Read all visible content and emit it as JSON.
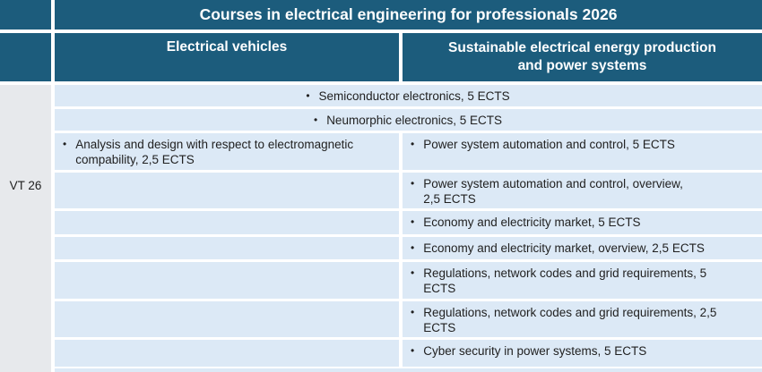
{
  "title": "Courses in electrical engineering for professionals 2026",
  "semester": {
    "label": "VT 26"
  },
  "columns": {
    "left": {
      "label": "Electrical vehicles"
    },
    "right": {
      "label": "Sustainable electrical energy production\nand power systems"
    }
  },
  "glyphs": {
    "bullet": "•"
  },
  "full_span_courses": [
    {
      "text": "Semiconductor electronics, 5 ECTS"
    },
    {
      "text": "Neumorphic electronics, 5 ECTS"
    }
  ],
  "rows": [
    {
      "left": "Analysis and design with respect to electromagnetic\ncompability, 2,5 ECTS",
      "right": "Power system automation and control, 5 ECTS"
    },
    {
      "left": "",
      "right": "Power system automation and control, overview,\n2,5 ECTS"
    },
    {
      "left": "",
      "right": "Economy and electricity market, 5 ECTS"
    },
    {
      "left": "",
      "right": "Economy and electricity market, overview, 2,5 ECTS"
    },
    {
      "left": "",
      "right": "Regulations, network codes and grid requirements, 5\nECTS"
    },
    {
      "left": "",
      "right": "Regulations, network codes and grid requirements, 2,5\nECTS"
    },
    {
      "left": "",
      "right": "Cyber security in power systems, 5 ECTS"
    }
  ],
  "colors": {
    "header_teal": "#1c5c7c",
    "row_light_blue": "#dce9f6",
    "gutter_gray": "#e7e9ec",
    "border_white": "#ffffff",
    "text_dark": "#212121",
    "header_text": "#ffffff"
  }
}
